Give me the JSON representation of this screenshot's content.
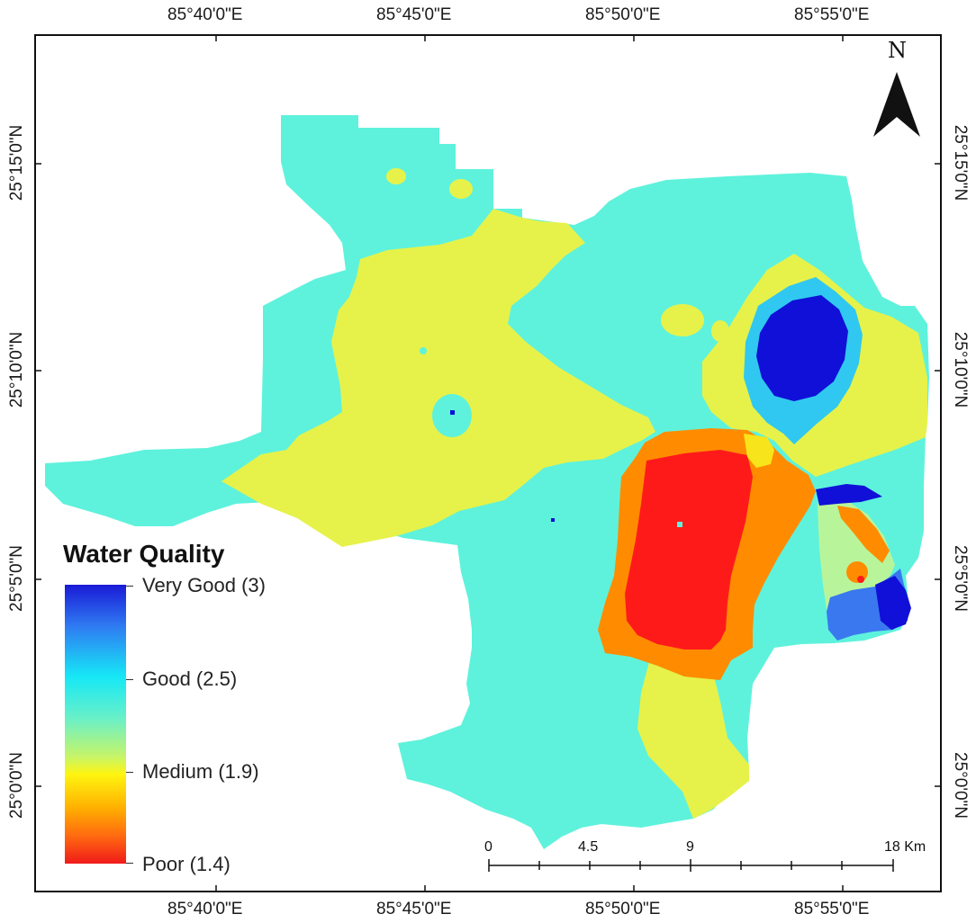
{
  "map": {
    "legend": {
      "title": "Water Quality",
      "classes": [
        {
          "label": "Very Good (3)",
          "color": "#1a1ad6"
        },
        {
          "label": "Good (2.5)",
          "color": "#16e8f6"
        },
        {
          "label": "Medium (1.9)",
          "color": "#fff510"
        },
        {
          "label": "Poor (1.4)",
          "color": "#f01a1a"
        }
      ]
    },
    "graticule": {
      "longitudes": [
        "85°40'0\"E",
        "85°45'0\"E",
        "85°50'0\"E",
        "85°55'0\"E"
      ],
      "latitudes": [
        "25°15'0\"N",
        "25°10'0\"N",
        "25°5'0\"N",
        "25°0'0\"N"
      ]
    },
    "north_arrow": {
      "label": "N"
    },
    "scale_bar": {
      "labels": [
        "0",
        "4.5",
        "9",
        "18 Km"
      ]
    },
    "zone_colors": {
      "good": "#5ef2dc",
      "medium": "#e6f24a",
      "moderate_poor": "#ff8c00",
      "poor": "#ff1a1a",
      "very_good": "#1010d8",
      "good_plus": "#30c8f0",
      "blue_mid": "#3a78f0",
      "light_green": "#b8f59a"
    }
  }
}
